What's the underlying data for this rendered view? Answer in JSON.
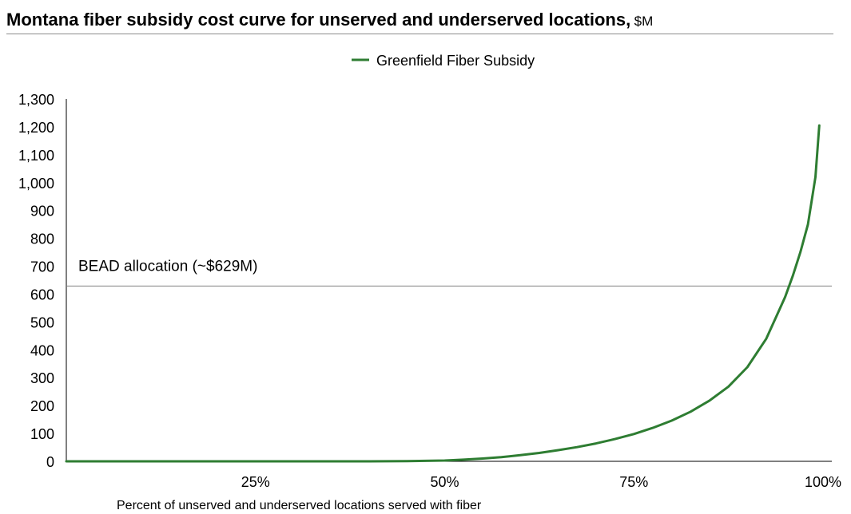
{
  "title": {
    "main": "Montana fiber subsidy cost curve for unserved and underserved locations,",
    "unit": "$M"
  },
  "chart_data": {
    "type": "line",
    "title": "Montana fiber subsidy cost curve for unserved and underserved locations, $M",
    "xlabel": "Percent of unserved and underserved locations served with fiber",
    "ylabel": "",
    "xlim": [
      0,
      100
    ],
    "ylim": [
      0,
      1300
    ],
    "x_ticks": [
      25,
      50,
      75,
      100
    ],
    "x_tick_labels": [
      "25%",
      "50%",
      "75%",
      "100%"
    ],
    "y_ticks": [
      0,
      100,
      200,
      300,
      400,
      500,
      600,
      700,
      800,
      900,
      1000,
      1100,
      1200,
      1300
    ],
    "y_tick_labels": [
      "0",
      "100",
      "200",
      "300",
      "400",
      "500",
      "600",
      "700",
      "800",
      "900",
      "1,000",
      "1,100",
      "1,200",
      "1,300"
    ],
    "grid": false,
    "legend_position": "top-center",
    "series": [
      {
        "name": "Greenfield Fiber Subsidy",
        "color": "#2e7d32",
        "x": [
          0,
          20,
          40,
          45,
          50,
          52.5,
          55,
          57.5,
          60,
          62.5,
          65,
          67.5,
          70,
          72.5,
          75,
          77.5,
          80,
          82.5,
          85,
          87.5,
          90,
          92.5,
          94,
          95,
          96,
          97,
          98,
          99,
          99.5
        ],
        "y": [
          0,
          0,
          0,
          1,
          3,
          6,
          10,
          15,
          22,
          30,
          40,
          51,
          64,
          80,
          98,
          120,
          146,
          178,
          218,
          268,
          338,
          440,
          530,
          590,
          665,
          750,
          850,
          1020,
          1205
        ]
      }
    ],
    "reference_lines": [
      {
        "axis": "y",
        "value": 629,
        "label": "BEAD allocation (~$629M)",
        "color": "#808080"
      }
    ]
  }
}
